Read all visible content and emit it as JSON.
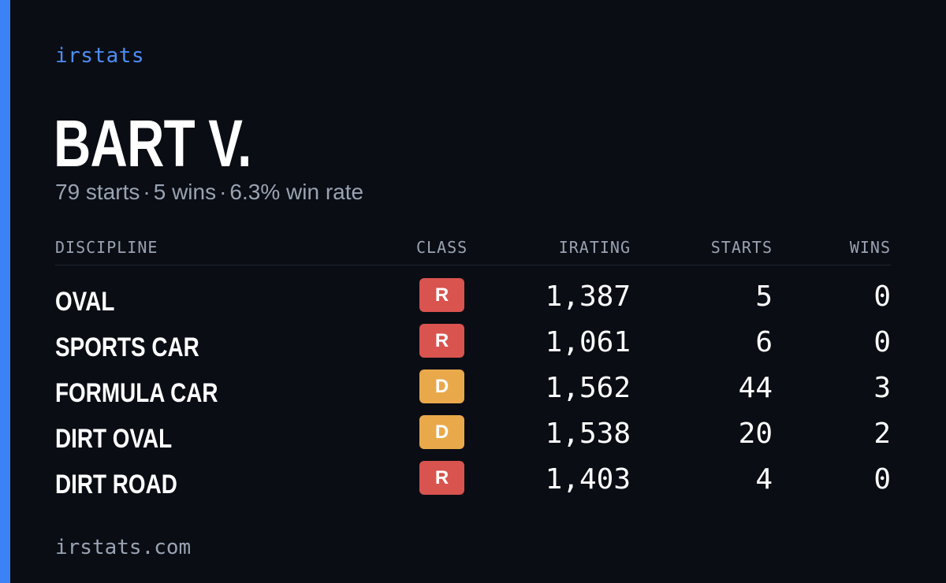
{
  "brand": "irstats",
  "driver": {
    "name": "BART V.",
    "starts_text": "79 starts",
    "wins_text": "5 wins",
    "win_rate_text": "6.3% win rate",
    "separator": "·"
  },
  "table": {
    "headers": {
      "discipline": "DISCIPLINE",
      "class": "CLASS",
      "irating": "IRATING",
      "starts": "STARTS",
      "wins": "WINS"
    },
    "rows": [
      {
        "discipline": "OVAL",
        "class": "R",
        "class_color": "#d9534f",
        "irating": "1,387",
        "starts": "5",
        "wins": "0"
      },
      {
        "discipline": "SPORTS CAR",
        "class": "R",
        "class_color": "#d9534f",
        "irating": "1,061",
        "starts": "6",
        "wins": "0"
      },
      {
        "discipline": "FORMULA CAR",
        "class": "D",
        "class_color": "#e9a94b",
        "irating": "1,562",
        "starts": "44",
        "wins": "3"
      },
      {
        "discipline": "DIRT OVAL",
        "class": "D",
        "class_color": "#e9a94b",
        "irating": "1,538",
        "starts": "20",
        "wins": "2"
      },
      {
        "discipline": "DIRT ROAD",
        "class": "R",
        "class_color": "#d9534f",
        "irating": "1,403",
        "starts": "4",
        "wins": "0"
      }
    ]
  },
  "footer": "irstats.com",
  "colors": {
    "accent": "#3b82f6",
    "background": "#0a0d14",
    "muted": "#9aa3b2"
  }
}
